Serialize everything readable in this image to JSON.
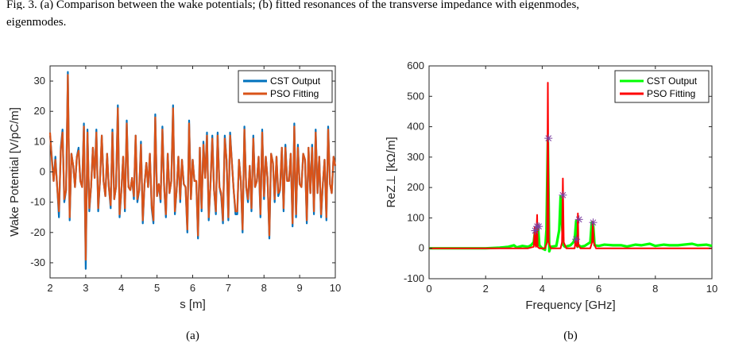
{
  "caption": {
    "head": "Fig. 3. (a) Comparison between the wake potentials; (b) fitted resonances of the transverse impedance with eigenmodes,",
    "tail": "eigenmodes."
  },
  "chart_data": [
    {
      "type": "line",
      "panel_label": "(a)",
      "xlabel": "s [m]",
      "ylabel": "Wake Potential [V/pC/m]",
      "xlim": [
        2,
        10
      ],
      "ylim": [
        -35,
        35
      ],
      "xticks": [
        2,
        3,
        4,
        5,
        6,
        7,
        8,
        9,
        10
      ],
      "yticks": [
        -30,
        -20,
        -10,
        0,
        10,
        20,
        30
      ],
      "legend_position": "top-right",
      "grid": false,
      "series": [
        {
          "name": "CST Output",
          "color": "#0072BD",
          "x": [
            2.0,
            2.05,
            2.1,
            2.15,
            2.2,
            2.25,
            2.3,
            2.35,
            2.4,
            2.45,
            2.5,
            2.55,
            2.6,
            2.65,
            2.7,
            2.75,
            2.8,
            2.85,
            2.9,
            2.95,
            3.0,
            3.05,
            3.1,
            3.15,
            3.2,
            3.25,
            3.3,
            3.35,
            3.4,
            3.45,
            3.5,
            3.55,
            3.6,
            3.65,
            3.7,
            3.75,
            3.8,
            3.85,
            3.9,
            3.95,
            4.0,
            4.05,
            4.1,
            4.15,
            4.2,
            4.25,
            4.3,
            4.35,
            4.4,
            4.45,
            4.5,
            4.55,
            4.6,
            4.65,
            4.7,
            4.75,
            4.8,
            4.85,
            4.9,
            4.95,
            5.0,
            5.05,
            5.1,
            5.15,
            5.2,
            5.25,
            5.3,
            5.35,
            5.4,
            5.45,
            5.5,
            5.55,
            5.6,
            5.65,
            5.7,
            5.75,
            5.8,
            5.85,
            5.9,
            5.95,
            6.0,
            6.05,
            6.1,
            6.15,
            6.2,
            6.25,
            6.3,
            6.35,
            6.4,
            6.45,
            6.5,
            6.55,
            6.6,
            6.65,
            6.7,
            6.75,
            6.8,
            6.85,
            6.9,
            6.95,
            7.0,
            7.05,
            7.1,
            7.15,
            7.2,
            7.25,
            7.3,
            7.35,
            7.4,
            7.45,
            7.5,
            7.55,
            7.6,
            7.65,
            7.7,
            7.75,
            7.8,
            7.85,
            7.9,
            7.95,
            8.0,
            8.05,
            8.1,
            8.15,
            8.2,
            8.25,
            8.3,
            8.35,
            8.4,
            8.45,
            8.5,
            8.55,
            8.6,
            8.65,
            8.7,
            8.75,
            8.8,
            8.85,
            8.9,
            8.95,
            9.0,
            9.05,
            9.1,
            9.15,
            9.2,
            9.25,
            9.3,
            9.35,
            9.4,
            9.45,
            9.5,
            9.55,
            9.6,
            9.65,
            9.7,
            9.75,
            9.8,
            9.85,
            9.9,
            9.95,
            10.0
          ],
          "y": [
            12,
            5,
            -3,
            5,
            -5,
            -15,
            8,
            14,
            -10,
            -6,
            33,
            -16,
            6,
            2,
            -5,
            5,
            8,
            -3,
            -5,
            16,
            -32,
            14,
            -13,
            -5,
            8,
            -2,
            14,
            -13,
            -3,
            12,
            -3,
            -8,
            6,
            -5,
            -12,
            14,
            -9,
            -5,
            22,
            -15,
            -6,
            5,
            -13,
            17,
            -5,
            -6,
            -2,
            -9,
            12,
            -10,
            -6,
            10,
            -17,
            -4,
            3,
            -5,
            6,
            -12,
            -17,
            19,
            -8,
            -4,
            -10,
            15,
            -5,
            -15,
            6,
            -7,
            -3,
            22,
            -14,
            -6,
            5,
            -10,
            4,
            -4,
            -5,
            -20,
            17,
            -9,
            4,
            -3,
            -3,
            -22,
            8,
            -13,
            10,
            -2,
            13,
            -16,
            -4,
            12,
            -6,
            -14,
            13,
            -5,
            -8,
            -17,
            12,
            4,
            -16,
            13,
            3,
            -6,
            -14,
            -14,
            4,
            -3,
            -20,
            15,
            -5,
            -10,
            2,
            -13,
            12,
            -5,
            -3,
            5,
            -15,
            14,
            -9,
            5,
            -2,
            -22,
            6,
            3,
            -10,
            5,
            -8,
            -6,
            8,
            -13,
            9,
            -3,
            -3,
            6,
            -18,
            16,
            -15,
            9,
            -4,
            -5,
            6,
            4,
            -17,
            8,
            -7,
            9,
            -14,
            14,
            -7,
            5,
            -15,
            -4,
            4,
            -16,
            15,
            -4,
            -7,
            5,
            2
          ]
        },
        {
          "name": "PSO Fitting",
          "color": "#D95319",
          "x": [
            2.0,
            2.05,
            2.1,
            2.15,
            2.2,
            2.25,
            2.3,
            2.35,
            2.4,
            2.45,
            2.5,
            2.55,
            2.6,
            2.65,
            2.7,
            2.75,
            2.8,
            2.85,
            2.9,
            2.95,
            3.0,
            3.05,
            3.1,
            3.15,
            3.2,
            3.25,
            3.3,
            3.35,
            3.4,
            3.45,
            3.5,
            3.55,
            3.6,
            3.65,
            3.7,
            3.75,
            3.8,
            3.85,
            3.9,
            3.95,
            4.0,
            4.05,
            4.1,
            4.15,
            4.2,
            4.25,
            4.3,
            4.35,
            4.4,
            4.45,
            4.5,
            4.55,
            4.6,
            4.65,
            4.7,
            4.75,
            4.8,
            4.85,
            4.9,
            4.95,
            5.0,
            5.05,
            5.1,
            5.15,
            5.2,
            5.25,
            5.3,
            5.35,
            5.4,
            5.45,
            5.5,
            5.55,
            5.6,
            5.65,
            5.7,
            5.75,
            5.8,
            5.85,
            5.9,
            5.95,
            6.0,
            6.05,
            6.1,
            6.15,
            6.2,
            6.25,
            6.3,
            6.35,
            6.4,
            6.45,
            6.5,
            6.55,
            6.6,
            6.65,
            6.7,
            6.75,
            6.8,
            6.85,
            6.9,
            6.95,
            7.0,
            7.05,
            7.1,
            7.15,
            7.2,
            7.25,
            7.3,
            7.35,
            7.4,
            7.45,
            7.5,
            7.55,
            7.6,
            7.65,
            7.7,
            7.75,
            7.8,
            7.85,
            7.9,
            7.95,
            8.0,
            8.05,
            8.1,
            8.15,
            8.2,
            8.25,
            8.3,
            8.35,
            8.4,
            8.45,
            8.5,
            8.55,
            8.6,
            8.65,
            8.7,
            8.75,
            8.8,
            8.85,
            8.9,
            8.95,
            9.0,
            9.05,
            9.1,
            9.15,
            9.2,
            9.25,
            9.3,
            9.35,
            9.4,
            9.45,
            9.5,
            9.55,
            9.6,
            9.65,
            9.7,
            9.75,
            9.8,
            9.85,
            9.9,
            9.95,
            10.0
          ],
          "y": [
            13,
            4,
            -3,
            4,
            -5,
            -13,
            7,
            13,
            -9,
            -6,
            32,
            -15,
            6,
            2,
            -5,
            5,
            7,
            -3,
            -5,
            15,
            -29,
            13,
            -12,
            -5,
            8,
            -2,
            13,
            -12,
            -3,
            12,
            -3,
            -8,
            6,
            -5,
            -11,
            13,
            -9,
            -5,
            21,
            -14,
            -6,
            5,
            -12,
            16,
            -5,
            -6,
            -2,
            -8,
            12,
            -9,
            -6,
            9,
            -16,
            -4,
            3,
            -5,
            6,
            -11,
            -16,
            18,
            -8,
            -4,
            -9,
            14,
            -5,
            -14,
            6,
            -7,
            -3,
            21,
            -13,
            -6,
            5,
            -9,
            4,
            -4,
            -5,
            -19,
            16,
            -9,
            4,
            -3,
            -3,
            -21,
            8,
            -12,
            9,
            -2,
            12,
            -15,
            -4,
            11,
            -6,
            -13,
            12,
            -5,
            -7,
            -16,
            11,
            4,
            -15,
            12,
            3,
            -6,
            -13,
            -13,
            4,
            -3,
            -19,
            14,
            -5,
            -9,
            2,
            -12,
            11,
            -5,
            -3,
            5,
            -14,
            13,
            -8,
            5,
            -2,
            -21,
            6,
            3,
            -9,
            5,
            -7,
            -6,
            8,
            -12,
            8,
            -3,
            -3,
            6,
            -17,
            15,
            -14,
            8,
            -4,
            -5,
            6,
            4,
            -16,
            8,
            -7,
            8,
            -13,
            13,
            -7,
            5,
            -14,
            -4,
            4,
            -15,
            14,
            -4,
            -7,
            5,
            2
          ]
        }
      ]
    },
    {
      "type": "line",
      "panel_label": "(b)",
      "xlabel": "Frequency [GHz]",
      "ylabel": "ReZ⊥ [kΩ/m]",
      "xlim": [
        0,
        10
      ],
      "ylim": [
        -100,
        600
      ],
      "xticks": [
        0,
        2,
        4,
        6,
        8,
        10
      ],
      "yticks": [
        -100,
        0,
        100,
        200,
        300,
        400,
        500,
        600
      ],
      "legend_position": "top-right",
      "grid": false,
      "series": [
        {
          "name": "CST Output",
          "color": "#00FF00",
          "x": [
            0,
            1,
            2,
            2.5,
            2.8,
            3.0,
            3.1,
            3.3,
            3.5,
            3.6,
            3.7,
            3.75,
            3.8,
            3.85,
            3.9,
            4.0,
            4.1,
            4.15,
            4.2,
            4.25,
            4.3,
            4.5,
            4.6,
            4.65,
            4.7,
            4.75,
            4.8,
            5.0,
            5.1,
            5.15,
            5.2,
            5.25,
            5.3,
            5.35,
            5.5,
            5.7,
            5.75,
            5.8,
            5.85,
            6.0,
            6.2,
            6.5,
            6.8,
            7.0,
            7.3,
            7.5,
            7.8,
            8.0,
            8.3,
            8.5,
            8.8,
            9.0,
            9.3,
            9.5,
            9.8,
            10
          ],
          "y": [
            0,
            0,
            0,
            2,
            5,
            10,
            3,
            8,
            5,
            10,
            20,
            60,
            70,
            75,
            10,
            0,
            -5,
            60,
            360,
            -10,
            5,
            8,
            60,
            170,
            80,
            10,
            5,
            10,
            20,
            30,
            90,
            5,
            10,
            5,
            8,
            20,
            85,
            80,
            10,
            8,
            12,
            10,
            10,
            6,
            12,
            10,
            15,
            8,
            12,
            10,
            10,
            12,
            15,
            10,
            12,
            8
          ]
        },
        {
          "name": "PSO Fitting",
          "color": "#FF0000",
          "x": [
            0,
            3.5,
            3.7,
            3.74,
            3.76,
            3.78,
            3.82,
            3.84,
            3.86,
            3.9,
            4.1,
            4.17,
            4.2,
            4.23,
            4.3,
            4.65,
            4.7,
            4.73,
            4.76,
            4.85,
            5.15,
            5.18,
            5.2,
            5.24,
            5.26,
            5.28,
            5.32,
            5.35,
            5.7,
            5.76,
            5.79,
            5.82,
            5.9,
            10
          ],
          "y": [
            0,
            0,
            5,
            70,
            10,
            5,
            110,
            5,
            3,
            0,
            0,
            20,
            545,
            20,
            0,
            0,
            20,
            230,
            20,
            0,
            0,
            30,
            10,
            5,
            115,
            10,
            5,
            0,
            0,
            20,
            88,
            20,
            0,
            0
          ]
        }
      ],
      "markers": {
        "symbol": "*",
        "color": "#7B3FA0",
        "points": [
          [
            3.75,
            58
          ],
          [
            3.82,
            72
          ],
          [
            3.88,
            72
          ],
          [
            4.22,
            362
          ],
          [
            4.73,
            175
          ],
          [
            5.2,
            30
          ],
          [
            5.3,
            95
          ],
          [
            5.8,
            85
          ]
        ]
      }
    }
  ]
}
